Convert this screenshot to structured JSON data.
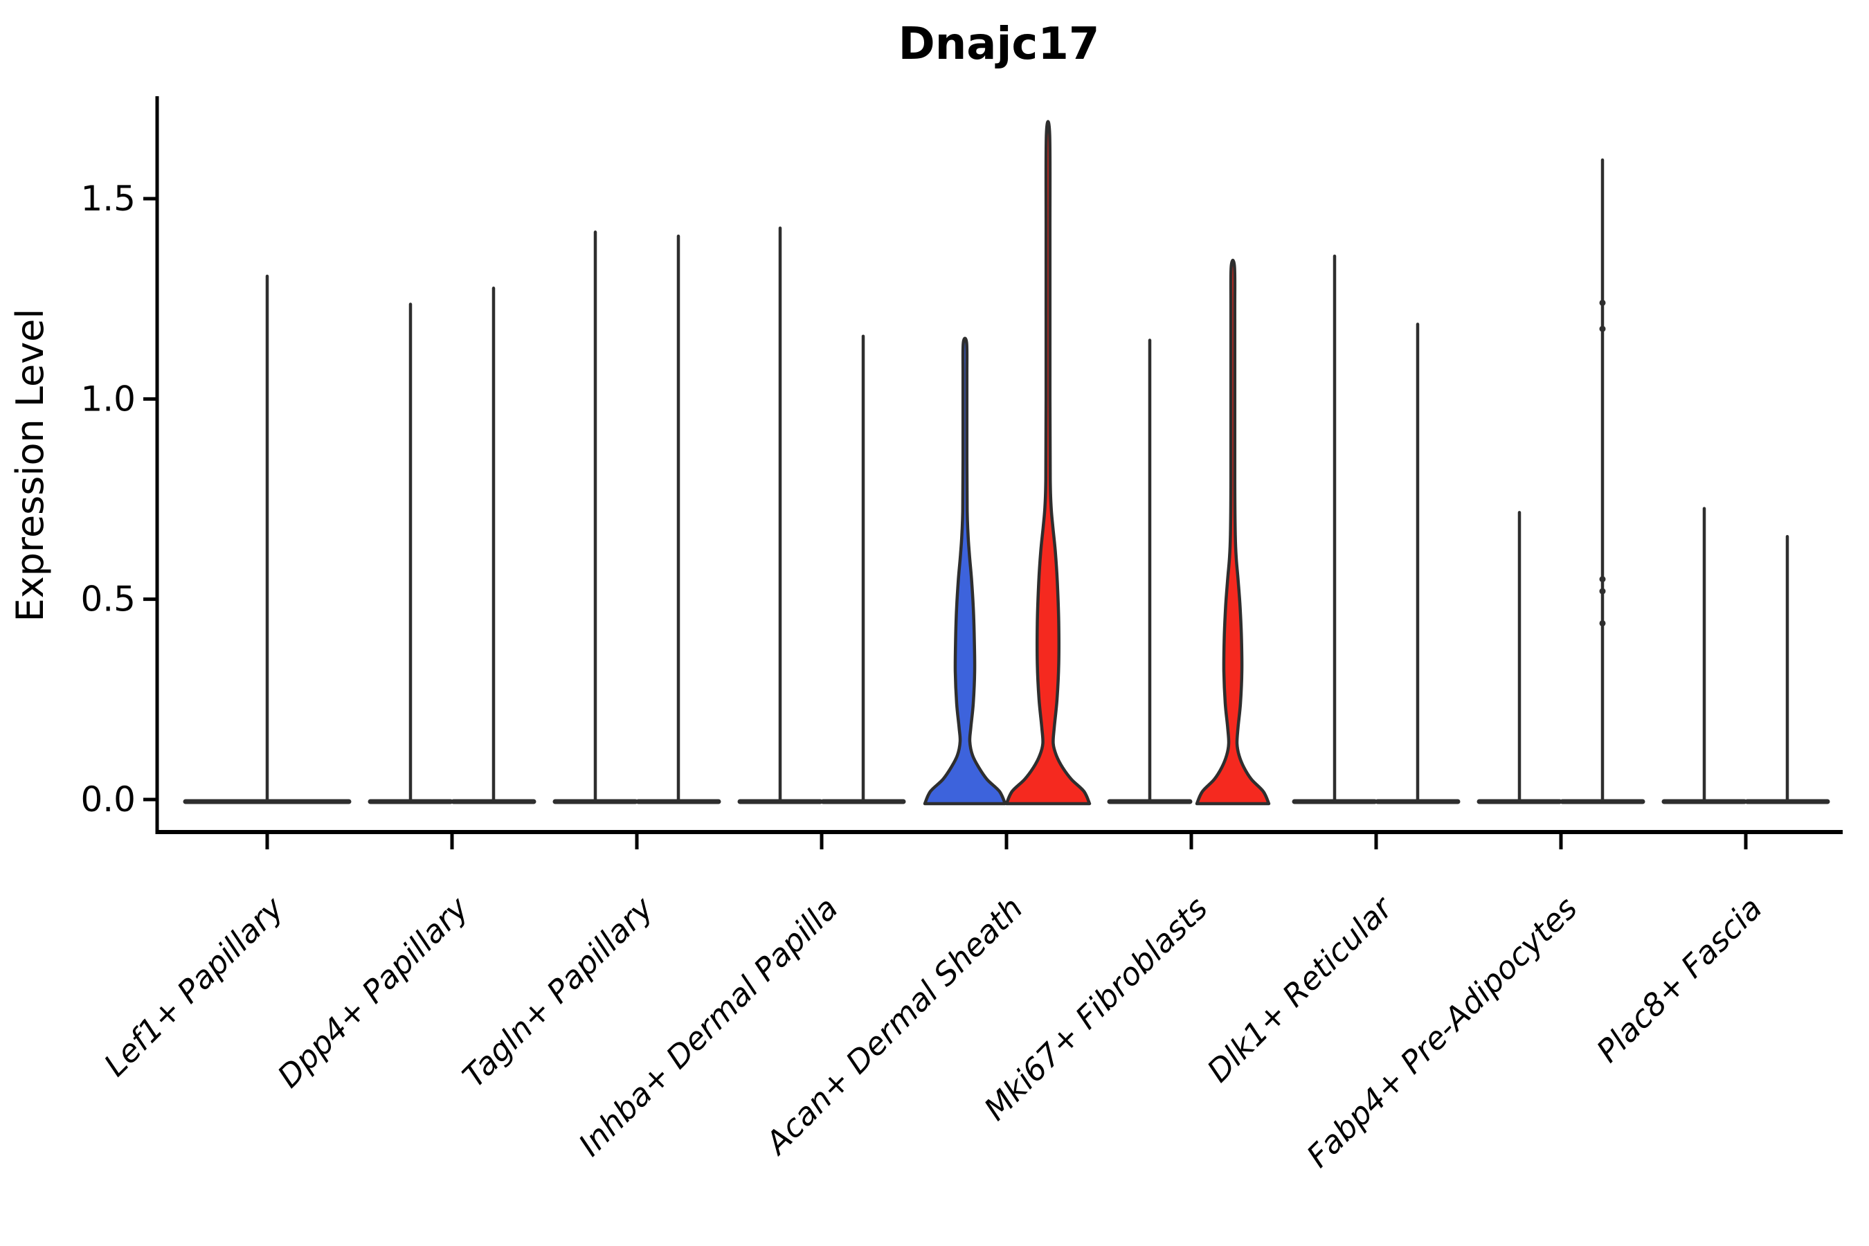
{
  "title": "Dnajc17",
  "y_axis": {
    "label": "Expression Level",
    "ticks": [
      "0.0",
      "0.5",
      "1.0",
      "1.5"
    ]
  },
  "x_axis": {
    "categories": [
      "Lef1+ Papillary",
      "Dpp4+ Papillary",
      "Tagln+ Papillary",
      "Inhba+ Dermal Papilla",
      "Acan+ Dermal Sheath",
      "Mki67+ Fibroblasts",
      "Dlk1+ Reticular",
      "Fabp4+ Pre-Adipocytes",
      "Plac8+ Fascia"
    ]
  },
  "colors": {
    "violin_outline": "#2E2E2E",
    "blue_fill": "#3D63DC",
    "red_fill": "#F5291F",
    "axis": "#000000"
  },
  "chart_data": {
    "type": "violin",
    "title": "Dnajc17",
    "xlabel": "",
    "ylabel": "Expression Level",
    "ylim": [
      0,
      1.76
    ],
    "ytick_values": [
      0,
      0.5,
      1.0,
      1.5
    ],
    "grid": false,
    "legend": false,
    "categories": [
      "Lef1+ Papillary",
      "Dpp4+ Papillary",
      "Tagln+ Papillary",
      "Inhba+ Dermal Papilla",
      "Acan+ Dermal Sheath",
      "Mki67+ Fibroblasts",
      "Dlk1+ Reticular",
      "Fabp4+ Pre-Adipocytes",
      "Plac8+ Fascia"
    ],
    "description": "Split violin plot of Dnajc17 expression; most violins collapse to a flat base at 0 with a thin spike to the max expressed cell. Filled violins: blue and red under Acan+ Dermal Sheath, red under Mki67+ Fibroblasts.",
    "violins": [
      {
        "category_index": 0,
        "side": "center",
        "max": 1.31,
        "fill": null,
        "base_halfwidth": 121
      },
      {
        "category_index": 1,
        "side": "left",
        "max": 1.24,
        "fill": null,
        "base_halfwidth": 61
      },
      {
        "category_index": 1,
        "side": "right",
        "max": 1.28,
        "fill": null,
        "base_halfwidth": 61
      },
      {
        "category_index": 2,
        "side": "left",
        "max": 1.42,
        "fill": null,
        "base_halfwidth": 61
      },
      {
        "category_index": 2,
        "side": "right",
        "max": 1.41,
        "fill": null,
        "base_halfwidth": 61
      },
      {
        "category_index": 3,
        "side": "left",
        "max": 1.43,
        "fill": null,
        "base_halfwidth": 61
      },
      {
        "category_index": 3,
        "side": "right",
        "max": 1.16,
        "fill": null,
        "base_halfwidth": 61
      },
      {
        "category_index": 4,
        "side": "left",
        "max": 1.14,
        "fill": "#3D63DC",
        "profile": [
          [
            0,
            58
          ],
          [
            0.02,
            50
          ],
          [
            0.05,
            32
          ],
          [
            0.08,
            20
          ],
          [
            0.11,
            11
          ],
          [
            0.145,
            7
          ],
          [
            0.18,
            8.5
          ],
          [
            0.24,
            12
          ],
          [
            0.32,
            14
          ],
          [
            0.4,
            13.5
          ],
          [
            0.48,
            12
          ],
          [
            0.55,
            9.5
          ],
          [
            0.61,
            6.5
          ],
          [
            0.66,
            4.5
          ],
          [
            0.72,
            3.2
          ],
          [
            0.85,
            2.8
          ],
          [
            1.05,
            2.8
          ],
          [
            1.14,
            2.4
          ]
        ]
      },
      {
        "category_index": 4,
        "side": "right",
        "max": 1.66,
        "fill": "#F5291F",
        "profile": [
          [
            0,
            60
          ],
          [
            0.02,
            52
          ],
          [
            0.05,
            34
          ],
          [
            0.08,
            21
          ],
          [
            0.11,
            12
          ],
          [
            0.14,
            7.5
          ],
          [
            0.18,
            9
          ],
          [
            0.25,
            13
          ],
          [
            0.34,
            15.5
          ],
          [
            0.44,
            15.5
          ],
          [
            0.54,
            13.5
          ],
          [
            0.62,
            10.5
          ],
          [
            0.68,
            7
          ],
          [
            0.73,
            4.5
          ],
          [
            0.8,
            3.2
          ],
          [
            1.0,
            2.8
          ],
          [
            1.4,
            2.8
          ],
          [
            1.66,
            2.4
          ]
        ]
      },
      {
        "category_index": 5,
        "side": "left",
        "max": 1.15,
        "fill": null,
        "base_halfwidth": 61
      },
      {
        "category_index": 5,
        "side": "right",
        "max": 1.33,
        "fill": "#F5291F",
        "profile": [
          [
            0,
            52
          ],
          [
            0.02,
            44
          ],
          [
            0.05,
            27
          ],
          [
            0.08,
            16
          ],
          [
            0.11,
            9
          ],
          [
            0.14,
            6
          ],
          [
            0.18,
            7.5
          ],
          [
            0.24,
            11
          ],
          [
            0.32,
            13
          ],
          [
            0.4,
            12.5
          ],
          [
            0.48,
            10.5
          ],
          [
            0.55,
            7.5
          ],
          [
            0.6,
            5
          ],
          [
            0.66,
            3.5
          ],
          [
            0.8,
            2.8
          ],
          [
            1.2,
            2.8
          ],
          [
            1.33,
            2.4
          ]
        ]
      },
      {
        "category_index": 6,
        "side": "left",
        "max": 1.36,
        "fill": null,
        "base_halfwidth": 61
      },
      {
        "category_index": 6,
        "side": "right",
        "max": 1.19,
        "fill": null,
        "base_halfwidth": 61
      },
      {
        "category_index": 7,
        "side": "left",
        "max": 0.72,
        "fill": null,
        "base_halfwidth": 61
      },
      {
        "category_index": 7,
        "side": "right",
        "max": 1.6,
        "fill": null,
        "base_halfwidth": 61
      },
      {
        "category_index": 8,
        "side": "left",
        "max": 0.73,
        "fill": null,
        "base_halfwidth": 61
      },
      {
        "category_index": 8,
        "side": "right",
        "max": 0.66,
        "fill": null,
        "base_halfwidth": 61
      }
    ],
    "outlier_points": [
      {
        "category_index": 7,
        "side": "right",
        "values": [
          1.24,
          1.175,
          0.55,
          0.52,
          0.44
        ]
      }
    ]
  }
}
